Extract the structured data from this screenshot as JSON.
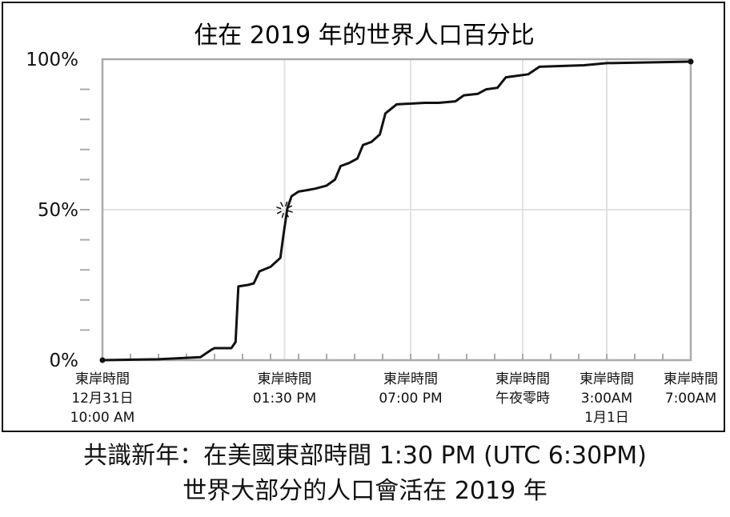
{
  "caption": {
    "line1": "共識新年：在美國東部時間 1:30 PM (UTC 6:30PM)",
    "line2": "世界大部分的人口會活在 2019 年"
  },
  "colors": {
    "line": "#111111",
    "grid": "#e2e2e2",
    "axis_box": "#aaaaaa",
    "background": "#ffffff"
  },
  "chart_data": {
    "type": "line",
    "title": "住在 2019 年的世界人口百分比",
    "xlabel": "",
    "ylabel": "",
    "ylim": [
      0,
      100
    ],
    "yticks": [
      {
        "value": 0,
        "label": "0%"
      },
      {
        "value": 50,
        "label": "50%"
      },
      {
        "value": 100,
        "label": "100%"
      }
    ],
    "xlim": [
      0,
      21
    ],
    "xticks": [
      {
        "value": 0,
        "label": [
          "東岸時間",
          "12月31日",
          "10:00 AM"
        ]
      },
      {
        "value": 6.5,
        "label": [
          "東岸時間",
          "01:30 PM"
        ]
      },
      {
        "value": 11,
        "label": [
          "東岸時間",
          "07:00 PM"
        ]
      },
      {
        "value": 15,
        "label": [
          "東岸時間",
          "午夜零時"
        ]
      },
      {
        "value": 18,
        "label": [
          "東岸時間",
          "3:00AM",
          "1月1日"
        ]
      },
      {
        "value": 21,
        "label": [
          "東岸時間",
          "7:00AM"
        ]
      }
    ],
    "grid": true,
    "annotation": {
      "x": 6.5,
      "y": 50,
      "mark": "burst"
    },
    "series": [
      {
        "x": [
          0,
          2,
          3.5,
          3.9,
          4.0,
          4.6,
          4.75,
          4.85,
          5.2,
          5.4,
          5.6,
          6.0,
          6.35,
          6.45,
          6.6,
          6.75,
          7.0,
          7.3,
          7.6,
          8.0,
          8.3,
          8.5,
          8.8,
          9.1,
          9.3,
          9.6,
          9.9,
          10.1,
          10.5,
          11.5,
          12.0,
          12.6,
          12.9,
          13.4,
          13.7,
          14.1,
          14.4,
          15.2,
          15.6,
          17.2,
          18.0,
          21
        ],
        "y": [
          0,
          0.3,
          1,
          3.5,
          4,
          4,
          6,
          24.5,
          25,
          25.5,
          29.5,
          31,
          34,
          41,
          50.5,
          54.5,
          56,
          56.5,
          57,
          58,
          60,
          64.5,
          65.5,
          67,
          71.5,
          72.5,
          75,
          82,
          85,
          85.5,
          85.5,
          86,
          88,
          88.5,
          90,
          90.5,
          94,
          95,
          97.5,
          98,
          98.7,
          99.2
        ]
      }
    ]
  }
}
